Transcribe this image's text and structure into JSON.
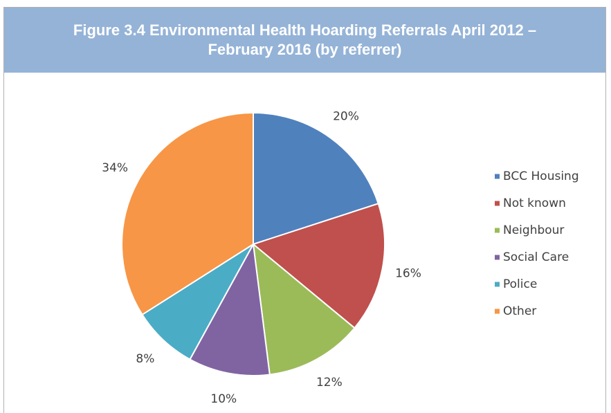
{
  "chart_data": {
    "type": "pie",
    "title": "Figure 3.4 Environmental Health Hoarding Referrals April 2012 – February 2016 (by referrer)",
    "categories": [
      "BCC Housing",
      "Not known",
      "Neighbour",
      "Social Care",
      "Police",
      "Other"
    ],
    "values": [
      20,
      16,
      12,
      10,
      8,
      34
    ],
    "value_labels": [
      "20%",
      "16%",
      "12%",
      "10%",
      "8%",
      "34%"
    ],
    "colors": [
      "#4f81bd",
      "#c0504d",
      "#9bbb59",
      "#8064a2",
      "#4bacc6",
      "#f79646"
    ],
    "legend": "right"
  }
}
